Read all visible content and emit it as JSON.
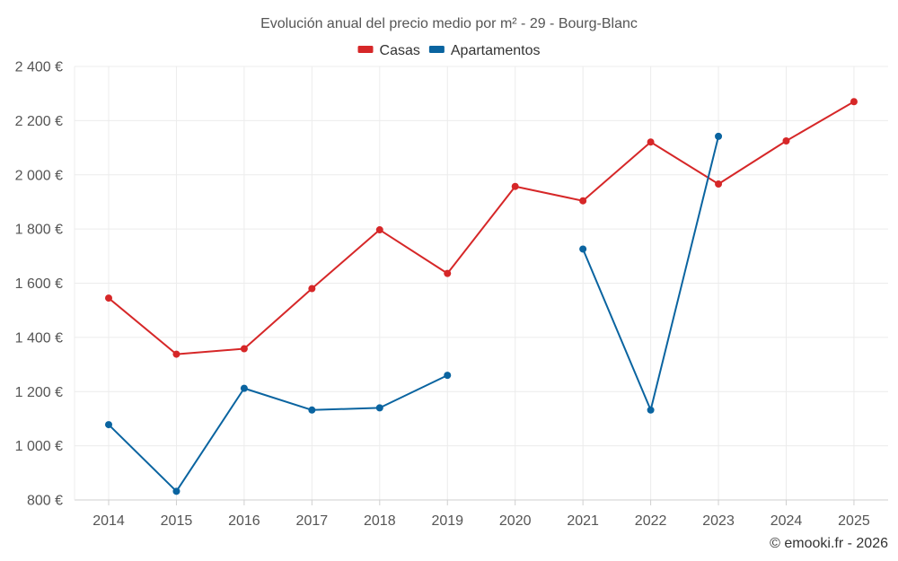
{
  "chart_data": {
    "type": "line",
    "title": "Evolución anual del precio medio por m² - 29 - Bourg-Blanc",
    "xlabel": "",
    "ylabel": "",
    "categories": [
      "2014",
      "2015",
      "2016",
      "2017",
      "2018",
      "2019",
      "2020",
      "2021",
      "2022",
      "2023",
      "2024",
      "2025"
    ],
    "ylim": [
      800,
      2400
    ],
    "yticks": [
      800,
      1000,
      1200,
      1400,
      1600,
      1800,
      2000,
      2200,
      2400
    ],
    "ytick_labels": [
      "800 €",
      "1 000 €",
      "1 200 €",
      "1 400 €",
      "1 600 €",
      "1 800 €",
      "2 000 €",
      "2 200 €",
      "2 400 €"
    ],
    "grid": true,
    "legend_position": "top-center",
    "series": [
      {
        "name": "Casas",
        "color": "#d62728",
        "values": [
          1545,
          1338,
          1358,
          1580,
          1797,
          1636,
          1957,
          1904,
          2121,
          1966,
          2125,
          2270
        ]
      },
      {
        "name": "Apartamentos",
        "color": "#0a64a0",
        "values": [
          1078,
          832,
          1212,
          1132,
          1140,
          1260,
          null,
          1726,
          1132,
          2142,
          null,
          null
        ]
      }
    ]
  },
  "copyright": "© emooki.fr - 2026"
}
